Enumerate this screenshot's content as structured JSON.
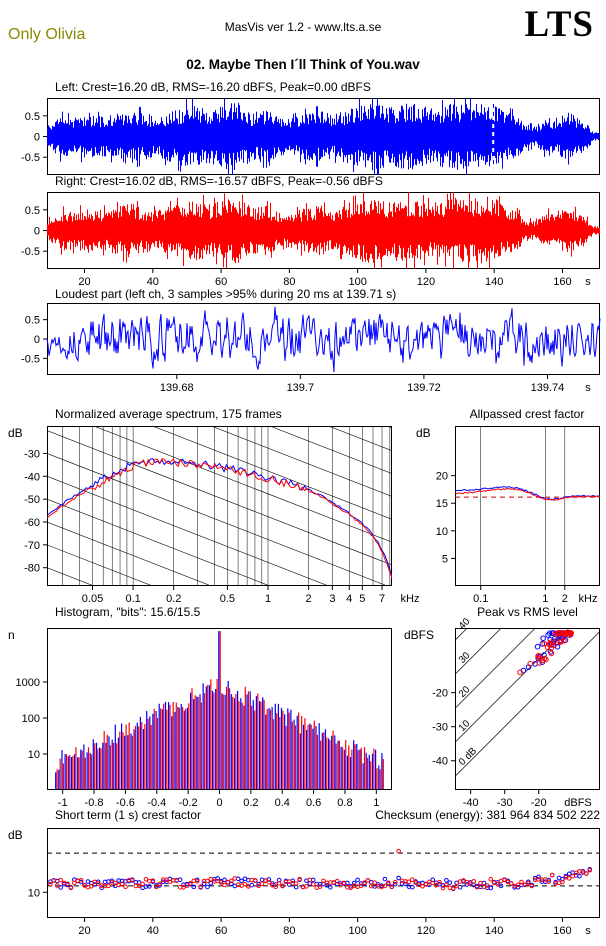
{
  "header": {
    "credit": "Only Olivia",
    "app_title": "MasVis ver 1.2 - www.lts.a.se",
    "logo": "LTS",
    "song_title": "02. Maybe Then I´ll Think of You.wav"
  },
  "colors": {
    "left_channel": "#0000ff",
    "right_channel": "#ff0000",
    "credit": "#8a8a00",
    "marker": "#ffffff",
    "reference_dash": "#cc0000"
  },
  "chart_data": [
    {
      "id": "left_wave",
      "type": "waveform",
      "channel": "left",
      "title": "Left: Crest=16.20 dB, RMS=-16.20 dBFS, Peak=0.00 dBFS",
      "xlim": [
        9,
        171
      ],
      "ylim": [
        -0.93,
        0.93
      ],
      "yticks": [
        0.5,
        0,
        -0.5
      ],
      "xticks": [],
      "marker_t": 139.71,
      "seed": 11,
      "envelope": [
        [
          10,
          0.3
        ],
        [
          13,
          0.52
        ],
        [
          17,
          0.45
        ],
        [
          21,
          0.6
        ],
        [
          25,
          0.48
        ],
        [
          29,
          0.55
        ],
        [
          33,
          0.7
        ],
        [
          37,
          0.58
        ],
        [
          41,
          0.52
        ],
        [
          45,
          0.62
        ],
        [
          49,
          0.75
        ],
        [
          53,
          0.82
        ],
        [
          57,
          0.66
        ],
        [
          61,
          0.78
        ],
        [
          65,
          0.83
        ],
        [
          69,
          0.58
        ],
        [
          73,
          0.65
        ],
        [
          77,
          0.48
        ],
        [
          81,
          0.46
        ],
        [
          85,
          0.58
        ],
        [
          89,
          0.63
        ],
        [
          93,
          0.52
        ],
        [
          97,
          0.68
        ],
        [
          101,
          0.78
        ],
        [
          105,
          0.83
        ],
        [
          109,
          0.72
        ],
        [
          113,
          0.78
        ],
        [
          117,
          0.83
        ],
        [
          121,
          0.68
        ],
        [
          125,
          0.75
        ],
        [
          129,
          0.82
        ],
        [
          133,
          0.78
        ],
        [
          137,
          0.86
        ],
        [
          140,
          0.83
        ],
        [
          143,
          0.62
        ],
        [
          146,
          0.55
        ],
        [
          149,
          0.32
        ],
        [
          152,
          0.24
        ],
        [
          154,
          0.38
        ],
        [
          156,
          0.48
        ],
        [
          158,
          0.36
        ],
        [
          160,
          0.52
        ],
        [
          162,
          0.58
        ],
        [
          164,
          0.5
        ],
        [
          166,
          0.42
        ],
        [
          168,
          0.25
        ],
        [
          169,
          0.1
        ]
      ]
    },
    {
      "id": "right_wave",
      "type": "waveform",
      "channel": "right",
      "title": "Right: Crest=16.02 dB, RMS=-16.57 dBFS, Peak=-0.56 dBFS",
      "xlim": [
        9,
        171
      ],
      "ylim": [
        -0.93,
        0.93
      ],
      "yticks": [
        0.5,
        0,
        -0.5
      ],
      "xticks": [
        20,
        40,
        60,
        80,
        100,
        120,
        140,
        160
      ],
      "xunit": "s",
      "seed": 12,
      "envelope": [
        [
          10,
          0.28
        ],
        [
          13,
          0.5
        ],
        [
          17,
          0.47
        ],
        [
          21,
          0.58
        ],
        [
          25,
          0.5
        ],
        [
          29,
          0.57
        ],
        [
          33,
          0.68
        ],
        [
          37,
          0.56
        ],
        [
          41,
          0.5
        ],
        [
          45,
          0.6
        ],
        [
          49,
          0.73
        ],
        [
          53,
          0.8
        ],
        [
          57,
          0.64
        ],
        [
          61,
          0.76
        ],
        [
          65,
          0.81
        ],
        [
          69,
          0.56
        ],
        [
          73,
          0.63
        ],
        [
          77,
          0.46
        ],
        [
          81,
          0.44
        ],
        [
          85,
          0.56
        ],
        [
          89,
          0.61
        ],
        [
          93,
          0.5
        ],
        [
          97,
          0.66
        ],
        [
          101,
          0.76
        ],
        [
          105,
          0.81
        ],
        [
          109,
          0.7
        ],
        [
          113,
          0.76
        ],
        [
          117,
          0.81
        ],
        [
          121,
          0.66
        ],
        [
          125,
          0.73
        ],
        [
          129,
          0.8
        ],
        [
          133,
          0.76
        ],
        [
          137,
          0.84
        ],
        [
          140,
          0.81
        ],
        [
          143,
          0.6
        ],
        [
          146,
          0.53
        ],
        [
          149,
          0.3
        ],
        [
          152,
          0.22
        ],
        [
          154,
          0.36
        ],
        [
          156,
          0.46
        ],
        [
          158,
          0.34
        ],
        [
          160,
          0.5
        ],
        [
          162,
          0.56
        ],
        [
          164,
          0.48
        ],
        [
          166,
          0.4
        ],
        [
          168,
          0.23
        ],
        [
          169,
          0.1
        ]
      ]
    },
    {
      "id": "loudest",
      "type": "noise_line",
      "title": "Loudest part (left ch, 3 samples >95% during 20 ms at 139.71 s)",
      "xlim": [
        139.659,
        139.7485
      ],
      "ylim": [
        -0.93,
        0.93
      ],
      "yticks": [
        0.5,
        0,
        -0.5
      ],
      "xticks": [
        139.68,
        139.7,
        139.72,
        139.74
      ],
      "xunit": "s",
      "seed": 13
    },
    {
      "id": "spectrum",
      "type": "spectrum",
      "title": "Normalized average spectrum, 175 frames",
      "ylabel": "dB",
      "xunit": "kHz",
      "xunit_dx": 18,
      "xlog": true,
      "xlim": [
        0.023,
        8.3
      ],
      "ylim": [
        -88,
        -18
      ],
      "yticks": [
        -30,
        -40,
        -50,
        -60,
        -70,
        -80
      ],
      "xticks": [
        0.05,
        0.1,
        0.2,
        0.5,
        1,
        2,
        3,
        4,
        5,
        7
      ],
      "minor_grid": [
        0.03,
        0.04,
        0.05,
        0.06,
        0.07,
        0.08,
        0.09,
        0.1,
        0.2,
        0.3,
        0.4,
        0.5,
        0.6,
        0.7,
        0.8,
        0.9,
        1,
        2,
        3,
        4,
        5,
        6,
        7,
        8
      ],
      "diag_step_db": 10,
      "diag_slope_db_per_decade": 23,
      "freq": [
        0.023,
        0.03,
        0.04,
        0.05,
        0.065,
        0.085,
        0.11,
        0.15,
        0.2,
        0.28,
        0.4,
        0.55,
        0.8,
        1.1,
        1.5,
        2,
        2.7,
        3.5,
        4.5,
        5.5,
        6.5,
        7.5,
        8.3
      ],
      "left_db": [
        -57,
        -52,
        -47,
        -44,
        -40,
        -36.5,
        -34,
        -33,
        -33.5,
        -34.5,
        -35.5,
        -37,
        -39,
        -41,
        -43.5,
        -46,
        -49.5,
        -54,
        -58.5,
        -63,
        -68.5,
        -76,
        -84
      ],
      "right_db": [
        -58,
        -53,
        -48,
        -45,
        -41,
        -37.5,
        -34.5,
        -33.2,
        -33.8,
        -35,
        -36,
        -37.5,
        -39.5,
        -41.5,
        -44,
        -46.5,
        -50,
        -54.5,
        -59,
        -63.5,
        -69,
        -77,
        -85
      ],
      "seed": 14
    },
    {
      "id": "allpassed",
      "type": "crest_curve",
      "title": "Allpassed crest factor",
      "ylabel": "dB",
      "xunit": "kHz",
      "xlog": true,
      "xlim": [
        0.04,
        7
      ],
      "ylim": [
        0,
        29
      ],
      "yticks": [
        5,
        10,
        15,
        20
      ],
      "xticks": [
        0.1,
        1,
        2
      ],
      "reference_db": 16.1,
      "freq": [
        0.04,
        0.06,
        0.09,
        0.13,
        0.18,
        0.25,
        0.35,
        0.5,
        0.7,
        0.9,
        1.2,
        1.6,
        2.1,
        2.8,
        3.7,
        5,
        7
      ],
      "left_db": [
        17.3,
        17.4,
        17.5,
        17.7,
        17.9,
        18.0,
        17.8,
        17.3,
        16.6,
        16.0,
        15.7,
        15.8,
        16.1,
        16.3,
        16.3,
        16.3,
        16.3
      ],
      "right_db": [
        16.8,
        16.9,
        17.1,
        17.3,
        17.5,
        17.6,
        17.5,
        17.1,
        16.4,
        15.9,
        15.6,
        15.7,
        16.0,
        16.2,
        16.2,
        16.2,
        16.2
      ],
      "seed": 15
    },
    {
      "id": "histogram",
      "type": "histogram",
      "title": "Histogram, \"bits\": 15.6/15.5",
      "ylabel": "n",
      "ylog": true,
      "xlim": [
        -1.1,
        1.1
      ],
      "ylim": [
        1,
        31623
      ],
      "yticks": [
        10,
        100,
        1000
      ],
      "xticks": [
        -1,
        -0.8,
        -0.6,
        -0.4,
        -0.2,
        0,
        0.2,
        0.4,
        0.6,
        0.8,
        1
      ],
      "bin_width": 0.02,
      "peak_n": 850,
      "decay_per_unit": 4.8,
      "center_spike_n": 26000,
      "seed_left": 7,
      "seed_right": 8
    },
    {
      "id": "pvr",
      "type": "scatter45",
      "title": "Peak vs RMS level",
      "ylabel": "dBFS",
      "ylabel_dx": -51,
      "xunit": "dBFS",
      "xunit_dx": -22,
      "xlim": [
        -44.6,
        -2
      ],
      "ylim": [
        -48.6,
        -1
      ],
      "yticks": [
        -20,
        -30,
        -40
      ],
      "xticks": [
        -40,
        -30,
        -20
      ],
      "crest_lines": [
        0,
        10,
        20,
        30,
        40
      ],
      "crest_line_labels": [
        "0 dB",
        "10",
        "20",
        "30",
        "40"
      ],
      "points_per_channel": 48,
      "rms_range": [
        -21.5,
        -10.5
      ],
      "crest_range": [
        7.5,
        15.5
      ],
      "peak_clip": -2.5,
      "outliers_left": [
        [
          -24.5,
          -13.5
        ],
        [
          -23,
          -12.5
        ]
      ],
      "outliers_right": [
        [
          -25.5,
          -14
        ],
        [
          -22.5,
          -11.5
        ]
      ],
      "seed_left": 21,
      "seed_right": 22
    },
    {
      "id": "shortterm",
      "type": "time_scatter",
      "title": "Short term (1 s) crest factor",
      "checksum_label": "Checksum (energy):  381 964 834 502 222",
      "ylabel": "dB",
      "xlim": [
        9,
        171
      ],
      "ylim": [
        6,
        20
      ],
      "yticks": [
        10
      ],
      "xticks": [
        20,
        40,
        60,
        80,
        100,
        120,
        140,
        160
      ],
      "xunit": "s",
      "dashed_levels": [
        16.1,
        11.0
      ],
      "trend": [
        [
          10,
          11.4
        ],
        [
          30,
          11.3
        ],
        [
          60,
          11.5
        ],
        [
          90,
          11.3
        ],
        [
          110,
          11.5
        ],
        [
          130,
          11.2
        ],
        [
          150,
          11.5
        ],
        [
          160,
          12.2
        ],
        [
          168,
          13.6
        ]
      ],
      "jitter": 0.7,
      "spike": {
        "t": 112,
        "value": 16.4,
        "channel": "right"
      },
      "seed_left": 31,
      "seed_right": 32
    }
  ]
}
